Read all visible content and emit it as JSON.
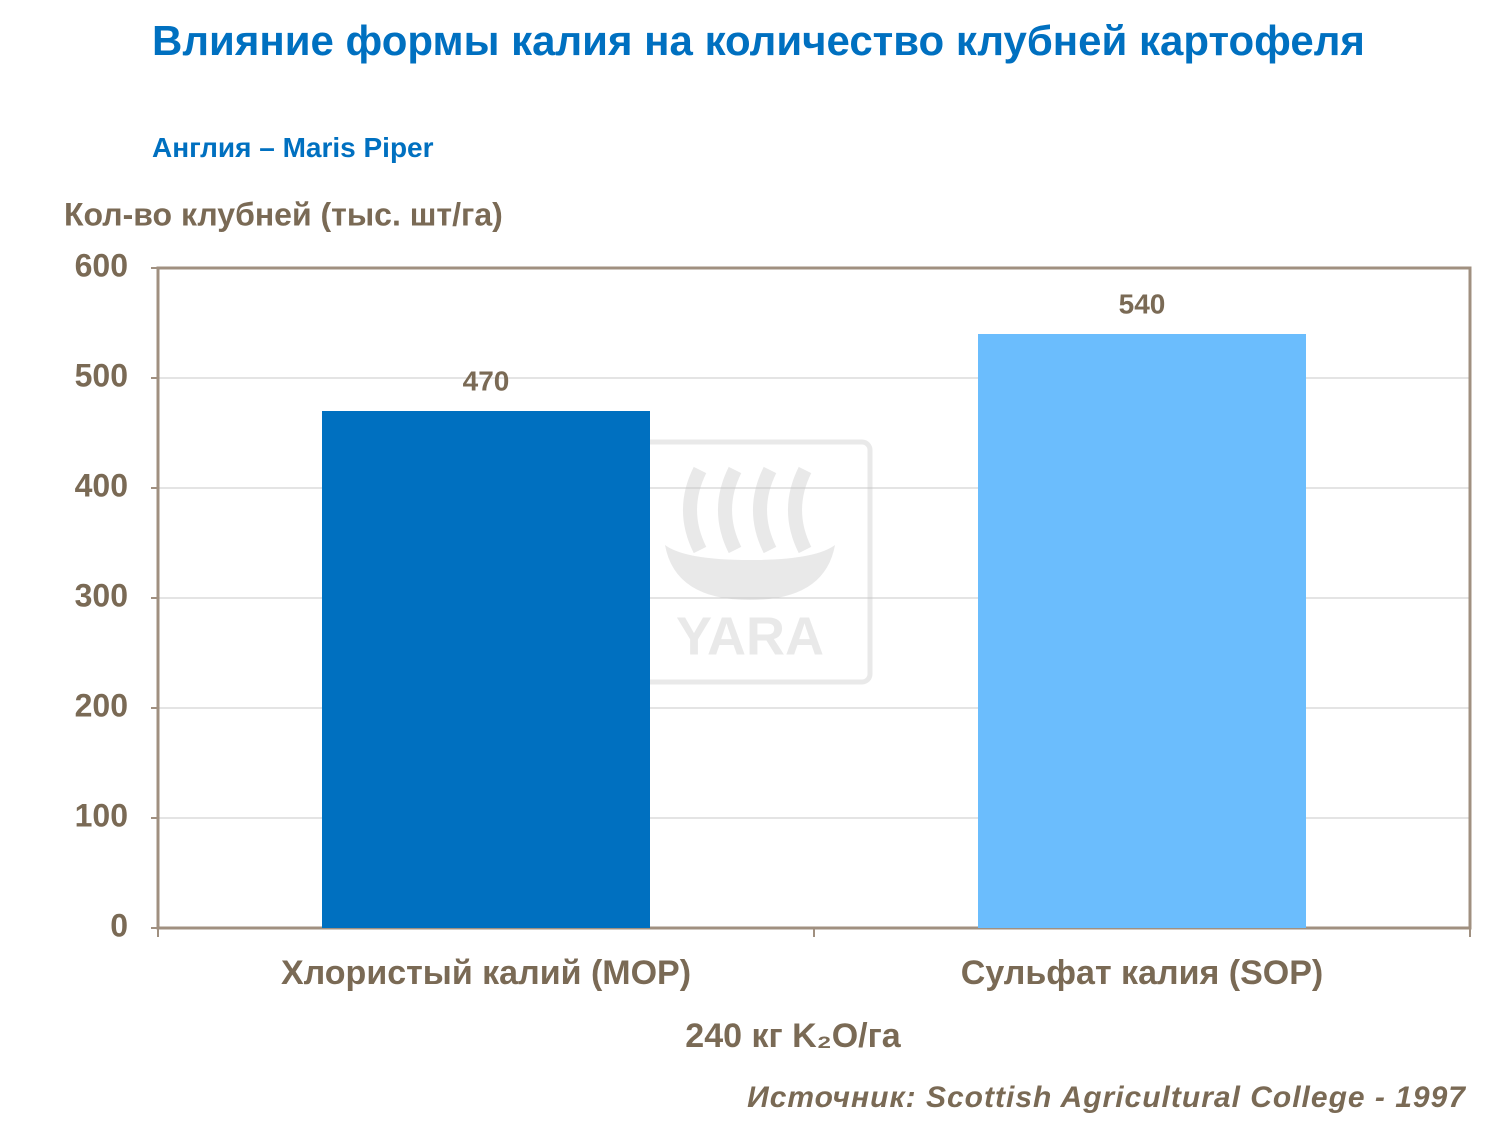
{
  "chart_data": {
    "type": "bar",
    "title": "Влияние формы калия на количество клубней картофеля",
    "subtitle": "Англия – Maris Piper",
    "y_label": "Кол-во клубней (тыс. шт/га)",
    "x_label": "240 кг K₂O/га",
    "source": "Источник: Scottish Agricultural College - 1997",
    "watermark": "YARA",
    "categories": [
      "Хлористый калий (MOP)",
      "Сульфат калия (SOP)"
    ],
    "values": [
      470,
      540
    ],
    "colors": [
      "#0070c0",
      "#6bbdfd"
    ],
    "ylim": [
      0,
      600
    ],
    "yticks": [
      0,
      100,
      200,
      300,
      400,
      500,
      600
    ],
    "grid": true
  }
}
